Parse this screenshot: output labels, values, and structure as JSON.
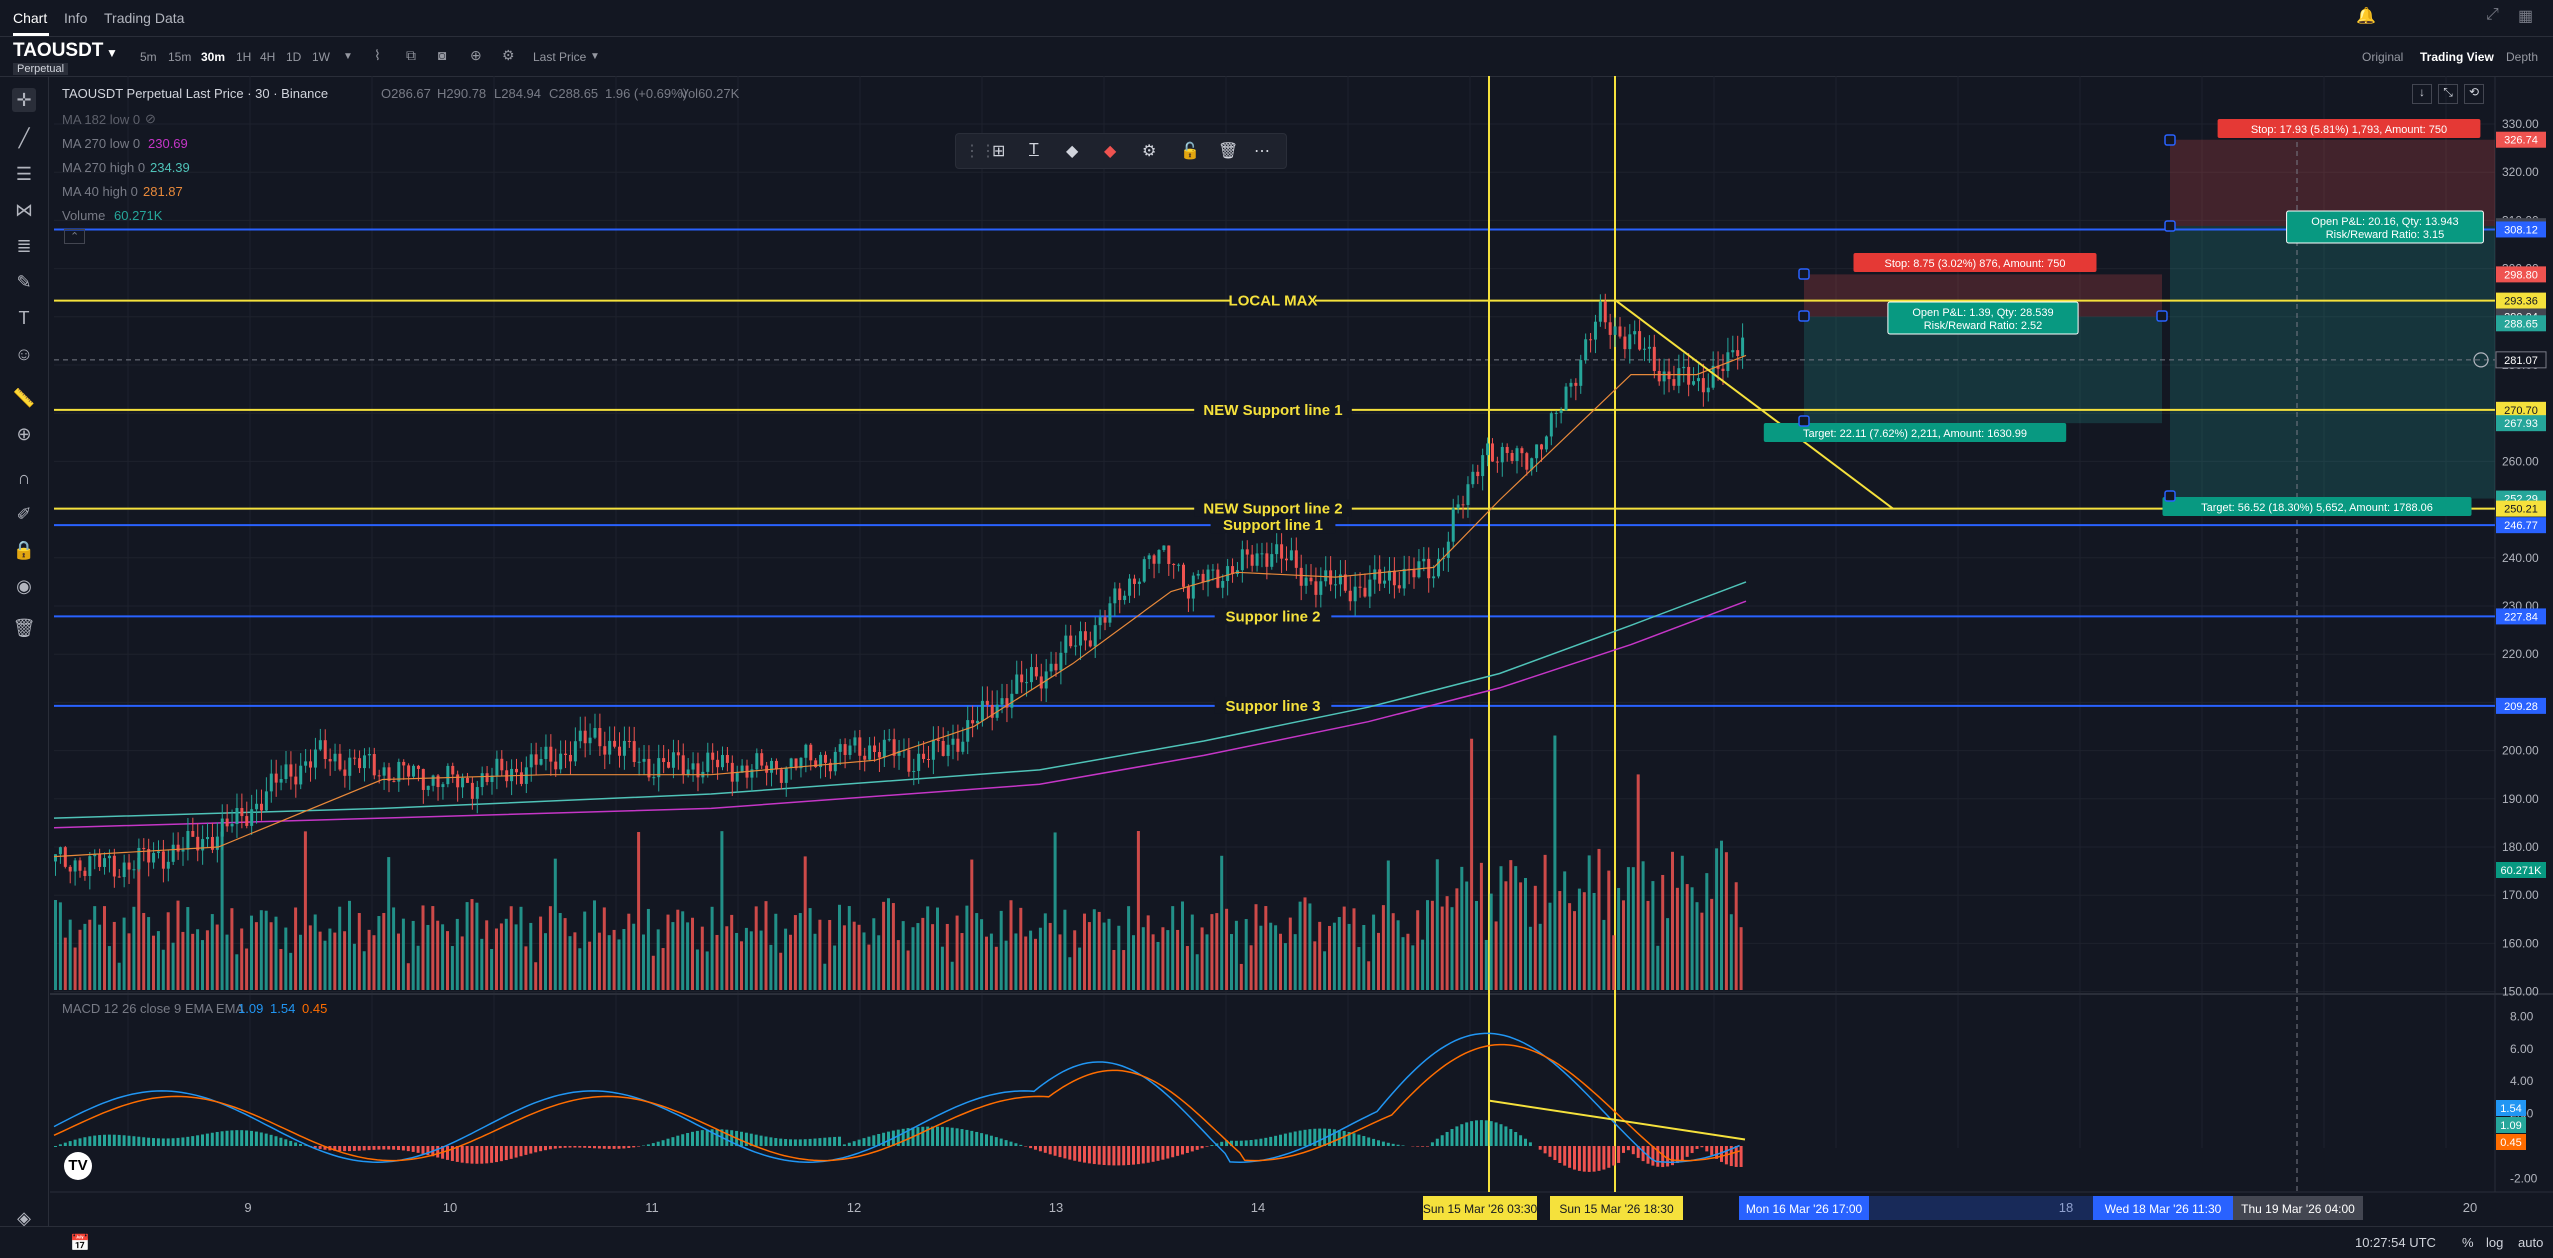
{
  "tabs": [
    "Chart",
    "Info",
    "Trading Data"
  ],
  "symbol": {
    "name": "TAOUSDT",
    "badge": "Perpetual"
  },
  "timeframes": [
    "5m",
    "15m",
    "30m",
    "1H",
    "4H",
    "1D",
    "1W"
  ],
  "active_timeframe": "30m",
  "price_source": "Last Price",
  "views": [
    "Original",
    "Trading View",
    "Depth"
  ],
  "active_view": "Trading View",
  "legend": {
    "title": "TAOUSDT Perpetual Last Price · 30 · Binance",
    "open": "O286.67",
    "high": "H290.78",
    "low": "L284.94",
    "close": "C288.65",
    "change": "1.96 (+0.69%)",
    "vol": "Vol60.27K",
    "ma182": "MA 182 low 0",
    "ma270low_label": "MA 270 low 0",
    "ma270low_val": "230.69",
    "ma270high_label": "MA 270 high 0",
    "ma270high_val": "234.39",
    "ma40_label": "MA 40 high 0",
    "ma40_val": "281.87",
    "volume_label": "Volume",
    "volume_val": "60.271K",
    "macd_label": "MACD 12 26 close 9 EMA EMA",
    "macd_v1": "1.09",
    "macd_v2": "1.54",
    "macd_v3": "0.45"
  },
  "colors": {
    "up": "#26a69a",
    "down": "#ef5350",
    "yellow": "#f5e13c",
    "blue": "#2962ff",
    "ma40": "#e8893a",
    "ma270low": "#c536c7",
    "ma270high": "#4fc3b8",
    "macd": "#2196f3",
    "signal": "#ff6d00"
  },
  "chart_data": [
    {
      "type": "line",
      "title": "TAOUSDT Perpetual Last Price · 30 · Binance",
      "xlabel": "",
      "ylabel": "",
      "x_ticks": [
        "9",
        "10",
        "11",
        "12",
        "13",
        "14",
        "18",
        "20"
      ],
      "x_labels_highlight": [
        "Sun 15 Mar '26  03:30",
        "Sun 15 Mar '26  18:30",
        "Mon 16 Mar '26   17:00",
        "Wed 18 Mar '26   11:30",
        "Thu 19 Mar '26   04:00"
      ],
      "y_ticks": [
        330.0,
        320.0,
        310.0,
        300.0,
        290.0,
        280.0,
        270.0,
        260.0,
        250.0,
        240.0,
        230.0,
        220.0,
        210.0,
        200.0,
        190.0,
        180.0,
        170.0,
        160.0,
        150.0
      ],
      "ylim": [
        149,
        334
      ],
      "price_labels": [
        {
          "v": 326.74,
          "c": "#ef5350"
        },
        {
          "v": 308.81,
          "c": "#434651"
        },
        {
          "v": 308.12,
          "c": "#2962ff"
        },
        {
          "v": 298.8,
          "c": "#ef5350"
        },
        {
          "v": 293.36,
          "c": "#f5e13c"
        },
        {
          "v": 290.04,
          "c": "#434651"
        },
        {
          "v": 288.65,
          "c": "#26a69a"
        },
        {
          "v": 281.07,
          "c": "#131722"
        },
        {
          "v": 270.7,
          "c": "#f5e13c"
        },
        {
          "v": 267.93,
          "c": "#26a69a"
        },
        {
          "v": 252.29,
          "c": "#26a69a"
        },
        {
          "v": 250.21,
          "c": "#f5e13c"
        },
        {
          "v": 246.77,
          "c": "#2962ff"
        },
        {
          "v": 227.84,
          "c": "#2962ff"
        },
        {
          "v": 209.28,
          "c": "#2962ff"
        }
      ],
      "horizontal_lines": [
        {
          "label": "LOCAL MAX",
          "value": 293.36,
          "color": "yellow"
        },
        {
          "label": "NEW Support line 1",
          "value": 270.7,
          "color": "yellow"
        },
        {
          "label": "NEW Support line 2",
          "value": 250.21,
          "color": "yellow"
        },
        {
          "label": "Support line 1",
          "value": 246.77,
          "color": "blue"
        },
        {
          "label": "Suppor line 2",
          "value": 227.84,
          "color": "blue"
        },
        {
          "label": "Suppor line 3",
          "value": 209.28,
          "color": "blue"
        },
        {
          "label": "",
          "value": 308.12,
          "color": "blue"
        }
      ],
      "price_path": [
        [
          0,
          177
        ],
        [
          40,
          176
        ],
        [
          80,
          180
        ],
        [
          110,
          185
        ],
        [
          140,
          195
        ],
        [
          160,
          199
        ],
        [
          200,
          196
        ],
        [
          250,
          193
        ],
        [
          300,
          198
        ],
        [
          330,
          203
        ],
        [
          360,
          197
        ],
        [
          400,
          197
        ],
        [
          430,
          196
        ],
        [
          460,
          198
        ],
        [
          500,
          201
        ],
        [
          520,
          198
        ],
        [
          540,
          200
        ],
        [
          560,
          206
        ],
        [
          580,
          212
        ],
        [
          600,
          216
        ],
        [
          620,
          222
        ],
        [
          640,
          228
        ],
        [
          660,
          238
        ],
        [
          680,
          241
        ],
        [
          690,
          233
        ],
        [
          700,
          236
        ],
        [
          720,
          238
        ],
        [
          740,
          242
        ],
        [
          760,
          236
        ],
        [
          780,
          234
        ],
        [
          800,
          234
        ],
        [
          820,
          237
        ],
        [
          840,
          237
        ],
        [
          850,
          248
        ],
        [
          860,
          253
        ],
        [
          870,
          264
        ],
        [
          880,
          260
        ],
        [
          900,
          262
        ],
        [
          910,
          266
        ],
        [
          920,
          275
        ],
        [
          940,
          290
        ],
        [
          960,
          285
        ],
        [
          980,
          278
        ],
        [
          1000,
          276
        ],
        [
          1010,
          279
        ],
        [
          1020,
          280
        ],
        [
          1030,
          288.65
        ]
      ],
      "ma40_path": [
        [
          0,
          178
        ],
        [
          100,
          180
        ],
        [
          200,
          194
        ],
        [
          300,
          195
        ],
        [
          400,
          195
        ],
        [
          500,
          198
        ],
        [
          560,
          205
        ],
        [
          620,
          218
        ],
        [
          680,
          233
        ],
        [
          720,
          237
        ],
        [
          780,
          236
        ],
        [
          840,
          238
        ],
        [
          880,
          252
        ],
        [
          920,
          265
        ],
        [
          960,
          278
        ],
        [
          1000,
          278
        ],
        [
          1030,
          282
        ]
      ],
      "ma270high_path": [
        [
          0,
          186
        ],
        [
          200,
          188
        ],
        [
          400,
          191
        ],
        [
          600,
          196
        ],
        [
          700,
          202
        ],
        [
          800,
          209
        ],
        [
          880,
          216
        ],
        [
          960,
          226
        ],
        [
          1030,
          235
        ]
      ],
      "ma270low_path": [
        [
          0,
          184
        ],
        [
          200,
          186
        ],
        [
          400,
          188
        ],
        [
          600,
          193
        ],
        [
          700,
          199
        ],
        [
          800,
          206
        ],
        [
          880,
          213
        ],
        [
          960,
          222
        ],
        [
          1030,
          231
        ]
      ],
      "volume_label": "60.271K",
      "macd_ticks": [
        "8.00",
        "6.00",
        "4.00",
        "2.00",
        "-2.00"
      ],
      "macd_labels": [
        "1.54",
        "1.09",
        "0.45"
      ],
      "positions": [
        {
          "stop": "Stop: 8.75 (3.02%) 876, Amount: 750",
          "open": "Open P&L: 1.39, Qty: 28.539",
          "rr": "Risk/Reward Ratio: 2.52",
          "target": "Target: 22.11 (7.62%) 2,211, Amount: 1630.99",
          "top": 298.8,
          "entry": 290.04,
          "bottom": 267.93
        },
        {
          "stop": "Stop: 17.93 (5.81%) 1,793, Amount: 750",
          "open": "Open P&L: 20.16, Qty: 13.943",
          "rr": "Risk/Reward Ratio: 3.15",
          "target": "Target: 56.52 (18.30%) 5,652, Amount: 1788.06",
          "top": 326.74,
          "entry": 308.81,
          "bottom": 252.29
        }
      ]
    }
  ],
  "bottom": {
    "clock": "10:27:54 UTC",
    "percent": "%",
    "log": "log",
    "auto": "auto"
  }
}
